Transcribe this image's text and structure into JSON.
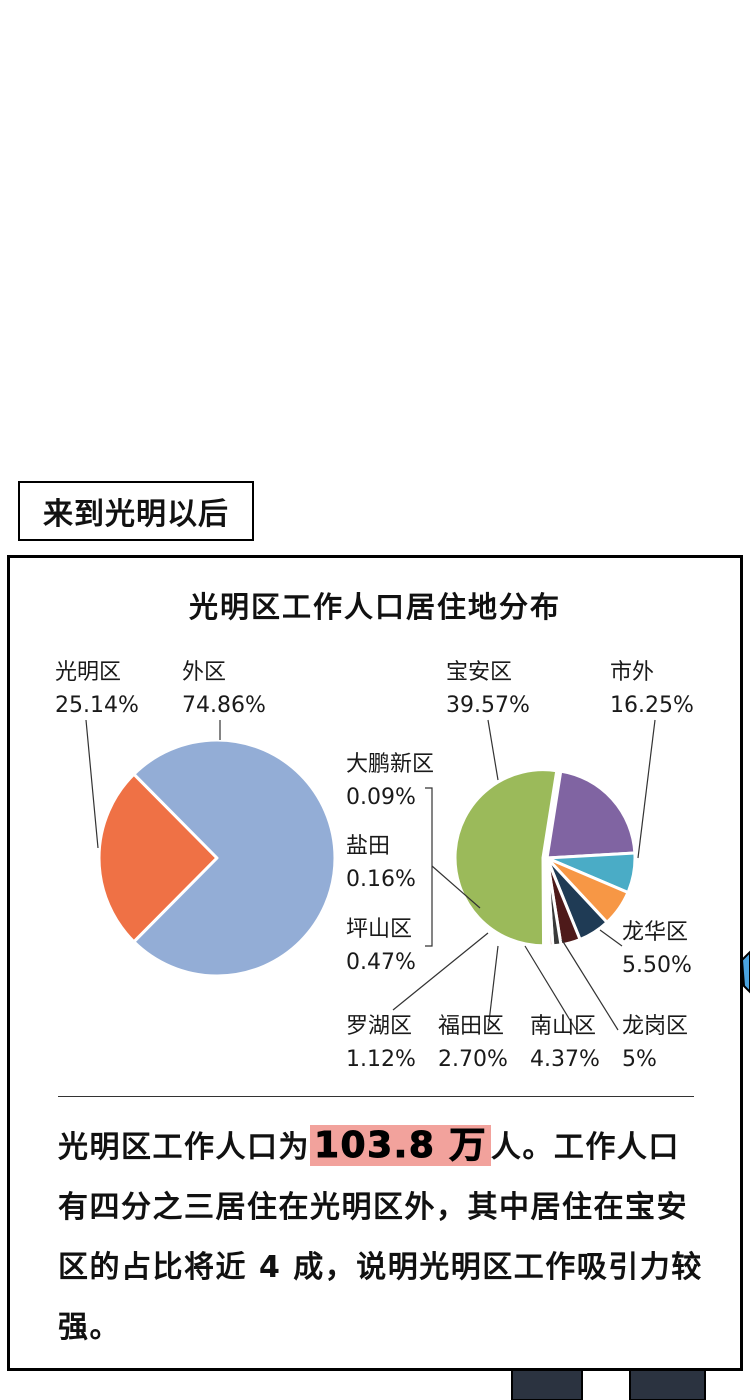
{
  "header": {
    "label": "来到光明以后"
  },
  "chart_data": [
    {
      "type": "pie",
      "title": "光明区工作人口居住地分布",
      "slices": [
        {
          "label": "光明区",
          "value": 25.14,
          "display": "25.14%",
          "color": "#ef7145"
        },
        {
          "label": "外区",
          "value": 74.86,
          "display": "74.86%",
          "color": "#93add6"
        }
      ]
    },
    {
      "type": "pie",
      "title": "",
      "slices": [
        {
          "label": "宝安区",
          "value": 39.57,
          "display": "39.57%",
          "color": "#9bba5a"
        },
        {
          "label": "市外",
          "value": 16.25,
          "display": "16.25%",
          "color": "#8064a2"
        },
        {
          "label": "龙华区",
          "value": 5.5,
          "display": "5.50%",
          "color": "#4aacc6"
        },
        {
          "label": "龙岗区",
          "value": 5,
          "display": "5%",
          "color": "#f79745"
        },
        {
          "label": "南山区",
          "value": 4.37,
          "display": "4.37%",
          "color": "#1f3b55"
        },
        {
          "label": "福田区",
          "value": 2.7,
          "display": "2.70%",
          "color": "#4e1a1a"
        },
        {
          "label": "罗湖区",
          "value": 1.12,
          "display": "1.12%",
          "color": "#3a3a3a"
        },
        {
          "label": "坪山区",
          "value": 0.47,
          "display": "0.47%",
          "color": "#c0504d"
        },
        {
          "label": "盐田",
          "value": 0.16,
          "display": "0.16%",
          "color": "#7f7f7f"
        },
        {
          "label": "大鹏新区",
          "value": 0.09,
          "display": "0.09%",
          "color": "#bfbfbf"
        }
      ]
    }
  ],
  "body": {
    "text_before": "光明区工作人口为",
    "highlight": "103.8 万",
    "text_after": "人。工作人口有四分之三居住在光明区外，其中居住在宝安区的占比将近 4 成，说明光明区工作吸引力较强。"
  }
}
